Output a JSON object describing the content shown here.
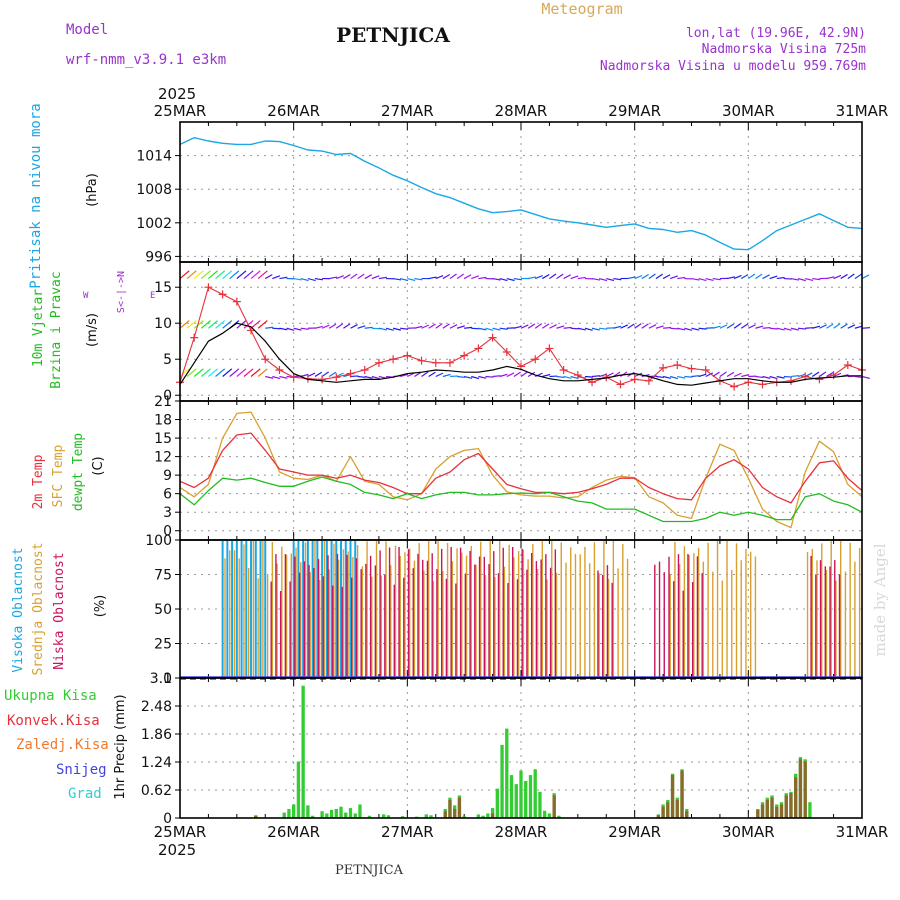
{
  "header": {
    "model_label": "Model",
    "model_name": "wrf-nmm_v3.9.1 e3km",
    "station": "PETNJICA",
    "product": "Meteogram",
    "location": "lon,lat (19.96E, 42.9N)",
    "altitude": "Nadmorska Visina 725m",
    "model_altitude": "Nadmorska Visina u modelu 959.769m",
    "footer_station": "PETNJICA",
    "watermark": "made by Angel"
  },
  "time_axis": {
    "year": "2025",
    "labels": [
      "25MAR",
      "26MAR",
      "27MAR",
      "28MAR",
      "29MAR",
      "30MAR",
      "31MAR"
    ],
    "start_hour": 0,
    "end_hour": 144
  },
  "colors": {
    "pressure": "#1aa7e6",
    "wind_label": "#22bb22",
    "wind_speed": "#000000",
    "gust": "#e8313b",
    "temp2m": "#e8313b",
    "sfc_temp": "#d9a030",
    "dewpt": "#22bb22",
    "cloud_high": "#1aa7e6",
    "cloud_mid": "#d9a030",
    "cloud_low": "#c8145a",
    "precip_total": "#33cc33",
    "precip_conv": "#e8313b",
    "precip_frz": "#f07830",
    "precip_snow": "#4444dd",
    "precip_grad": "#33cccc",
    "title_purple": "#9933cc",
    "meteogram_orange": "#d9a85a"
  },
  "chart_data": [
    {
      "type": "line",
      "name": "pressure",
      "title": "Pritisak na nivou mora",
      "ylabel": "(hPa)",
      "yticks": [
        "1014",
        "1008",
        "1002",
        "996"
      ],
      "ytick_values": [
        1014,
        1008,
        1002,
        996
      ],
      "ylim": [
        995,
        1020
      ],
      "x_hours": [
        0,
        3,
        6,
        9,
        12,
        15,
        18,
        21,
        24,
        27,
        30,
        33,
        36,
        39,
        42,
        45,
        48,
        51,
        54,
        57,
        60,
        63,
        66,
        69,
        72,
        75,
        78,
        81,
        84,
        87,
        90,
        93,
        96,
        99,
        102,
        105,
        108,
        111,
        114,
        117,
        120,
        123,
        126,
        129,
        132,
        135,
        138,
        141,
        144
      ],
      "series": [
        {
          "name": "MSLP",
          "values": [
            1016,
            1017.2,
            1016.6,
            1016.2,
            1016,
            1016,
            1016.6,
            1016.5,
            1015.8,
            1015,
            1014.8,
            1014.2,
            1014.4,
            1013,
            1011.8,
            1010.5,
            1009.5,
            1008.3,
            1007.2,
            1006.5,
            1005.5,
            1004.5,
            1003.8,
            1004,
            1004.3,
            1003.5,
            1002.7,
            1002.3,
            1002,
            1001.6,
            1001.2,
            1001.5,
            1001.8,
            1001,
            1000.8,
            1000.3,
            1000.6,
            999.8,
            998.5,
            997.3,
            997.2,
            998.8,
            1000.6,
            1001.6,
            1002.6,
            1003.6,
            1002.4,
            1001.2,
            1001
          ]
        }
      ]
    },
    {
      "type": "line",
      "name": "wind",
      "title": "10m Vjetar Brzina i Pravac",
      "ylabel": "(m/s)",
      "compass_label": "w<-->E",
      "compass_label2": "S<-|->N",
      "yticks": [
        "15",
        "10",
        "5",
        "0"
      ],
      "ytick_values": [
        15,
        10,
        5,
        0
      ],
      "ylim": [
        -0.8,
        18.5
      ],
      "x_hours": [
        0,
        3,
        6,
        9,
        12,
        15,
        18,
        21,
        24,
        27,
        30,
        33,
        36,
        39,
        42,
        45,
        48,
        51,
        54,
        57,
        60,
        63,
        66,
        69,
        72,
        75,
        78,
        81,
        84,
        87,
        90,
        93,
        96,
        99,
        102,
        105,
        108,
        111,
        114,
        117,
        120,
        123,
        126,
        129,
        132,
        135,
        138,
        141,
        144
      ],
      "series": [
        {
          "name": "Brzina",
          "values": [
            1.5,
            4.5,
            7.5,
            8.6,
            10,
            9.5,
            7.5,
            5,
            3,
            2.2,
            2,
            1.8,
            2,
            2.2,
            2.2,
            2.5,
            3,
            3.2,
            3.5,
            3.4,
            3.2,
            3.2,
            3.5,
            4,
            3.6,
            2.8,
            2.3,
            2,
            2,
            2.2,
            2.4,
            2.8,
            3,
            2.6,
            2,
            1.5,
            1.4,
            1.7,
            2,
            2.3,
            2.3,
            2,
            1.8,
            1.8,
            2.2,
            2.4,
            2.5,
            2.7,
            2.7
          ]
        },
        {
          "name": "Udari",
          "values": [
            1.8,
            8,
            15,
            14,
            13,
            9,
            5,
            3.5,
            2.5,
            2.3,
            2.2,
            2.5,
            3,
            3.5,
            4.5,
            5,
            5.5,
            4.8,
            4.5,
            4.5,
            5.5,
            6.5,
            8,
            6,
            4,
            5,
            6.5,
            3.5,
            2.8,
            1.8,
            2.5,
            1.5,
            2.2,
            2,
            3.8,
            4.2,
            3.7,
            3.5,
            2,
            1.2,
            1.8,
            1.5,
            1.8,
            2,
            2.6,
            2.2,
            2.8,
            4.2,
            3.5
          ]
        }
      ]
    },
    {
      "type": "line",
      "name": "temperature",
      "title_2m": "2m Temp",
      "title_sfc": "SFC Temp",
      "title_dew": "dewpt Temp",
      "ylabel": "(C)",
      "yticks": [
        "21",
        "18",
        "15",
        "12",
        "9",
        "6",
        "3",
        "0"
      ],
      "ytick_values": [
        21,
        18,
        15,
        12,
        9,
        6,
        3,
        0
      ],
      "ylim": [
        -1.5,
        21
      ],
      "x_hours": [
        0,
        3,
        6,
        9,
        12,
        15,
        18,
        21,
        24,
        27,
        30,
        33,
        36,
        39,
        42,
        45,
        48,
        51,
        54,
        57,
        60,
        63,
        66,
        69,
        72,
        75,
        78,
        81,
        84,
        87,
        90,
        93,
        96,
        99,
        102,
        105,
        108,
        111,
        114,
        117,
        120,
        123,
        126,
        129,
        132,
        135,
        138,
        141,
        144
      ],
      "series": [
        {
          "name": "2m Temp",
          "values": [
            8,
            7,
            8.5,
            13,
            15.5,
            15.8,
            13,
            10,
            9.5,
            9,
            9,
            8.5,
            9,
            8.2,
            7.8,
            7,
            6,
            6,
            8.5,
            9.5,
            11.5,
            12.5,
            10,
            7.5,
            6.8,
            6.2,
            6.2,
            6,
            6.2,
            6.8,
            7.5,
            8.5,
            8.5,
            7,
            6,
            5.2,
            5,
            8.5,
            10.5,
            11.5,
            10,
            7,
            5.5,
            4.5,
            8,
            11,
            11.3,
            8.5,
            6.5
          ]
        },
        {
          "name": "SFC Temp",
          "values": [
            7,
            5.5,
            7.5,
            15,
            19,
            19.2,
            15,
            9.5,
            8.5,
            8.3,
            9,
            8,
            12,
            8,
            7.5,
            5.5,
            5,
            6,
            10,
            12,
            13,
            13.3,
            9,
            6.3,
            5.8,
            5.6,
            5.6,
            5.3,
            5.5,
            7,
            8.2,
            8.8,
            8.6,
            5.5,
            4.5,
            2.5,
            2,
            8.5,
            14,
            13,
            8.5,
            3.5,
            1.5,
            0.5,
            9.5,
            14.5,
            12.8,
            7.5,
            5.5
          ]
        },
        {
          "name": "dewpt Temp",
          "values": [
            6,
            4.2,
            6.5,
            8.5,
            8.2,
            8.5,
            7.8,
            7.2,
            7.2,
            8,
            8.7,
            8,
            7.5,
            6.2,
            5.8,
            5.2,
            6,
            5.2,
            5.8,
            6.2,
            6.2,
            5.8,
            5.8,
            6,
            6.1,
            6,
            6.2,
            5.5,
            4.8,
            4.5,
            3.5,
            3.5,
            3.5,
            2.5,
            1.5,
            1.5,
            1.5,
            2,
            3,
            2.5,
            3,
            2.5,
            1.8,
            1.8,
            5.5,
            6,
            4.8,
            4.2,
            3
          ]
        }
      ]
    },
    {
      "type": "bar",
      "name": "cloud",
      "title_high": "Visoka Oblacnost",
      "title_mid": "Srednja Oblacnost",
      "title_low": "Niska Oblacnost",
      "ylabel": "(%)",
      "yticks": [
        "100",
        "75",
        "50",
        "25",
        "0"
      ],
      "ytick_values": [
        100,
        75,
        50,
        25,
        0
      ],
      "ylim": [
        0,
        100
      ],
      "series": [
        {
          "name": "Visoka",
          "segments": [
            {
              "from": 9,
              "to": 19,
              "value": 100
            },
            {
              "from": 24,
              "to": 38,
              "value": 100
            }
          ]
        },
        {
          "name": "Srednja",
          "segments": [
            {
              "from": 9,
              "to": 65,
              "value": 100
            },
            {
              "from": 65,
              "to": 95,
              "value": 100
            },
            {
              "from": 103,
              "to": 122,
              "value": 100
            },
            {
              "from": 132,
              "to": 144,
              "value": 100
            }
          ]
        },
        {
          "name": "Niska",
          "segments": [
            {
              "from": 19,
              "to": 40,
              "value": 90
            },
            {
              "from": 40,
              "to": 80,
              "value": 95
            },
            {
              "from": 88,
              "to": 92,
              "value": 85
            },
            {
              "from": 100,
              "to": 111,
              "value": 90
            },
            {
              "from": 133,
              "to": 140,
              "value": 90
            }
          ]
        }
      ]
    },
    {
      "type": "bar",
      "name": "precipitation",
      "ylabel": "1hr Precip (mm)",
      "legend": [
        "Ukupna Kisa",
        "Konvek.Kisa",
        "Zaledj.Kisa",
        "Snijeg",
        "Grad"
      ],
      "yticks": [
        "3.1",
        "2.48",
        "1.86",
        "1.24",
        "0.62",
        "0"
      ],
      "ytick_values": [
        3.1,
        2.48,
        1.86,
        1.24,
        0.62,
        0
      ],
      "ylim": [
        0,
        3.1
      ],
      "bars_total": [
        {
          "h": 16,
          "v": 0.06
        },
        {
          "h": 22,
          "v": 0.12
        },
        {
          "h": 23,
          "v": 0.2
        },
        {
          "h": 24,
          "v": 0.3
        },
        {
          "h": 25,
          "v": 1.25
        },
        {
          "h": 26,
          "v": 2.93
        },
        {
          "h": 27,
          "v": 0.28
        },
        {
          "h": 28,
          "v": 0.05
        },
        {
          "h": 30,
          "v": 0.15
        },
        {
          "h": 31,
          "v": 0.1
        },
        {
          "h": 32,
          "v": 0.18
        },
        {
          "h": 33,
          "v": 0.2
        },
        {
          "h": 34,
          "v": 0.25
        },
        {
          "h": 35,
          "v": 0.12
        },
        {
          "h": 36,
          "v": 0.22
        },
        {
          "h": 37,
          "v": 0.1
        },
        {
          "h": 38,
          "v": 0.3
        },
        {
          "h": 40,
          "v": 0.05
        },
        {
          "h": 43,
          "v": 0.08
        },
        {
          "h": 44,
          "v": 0.06
        },
        {
          "h": 47,
          "v": 0.04
        },
        {
          "h": 50,
          "v": 0.03
        },
        {
          "h": 52,
          "v": 0.08
        },
        {
          "h": 53,
          "v": 0.06
        },
        {
          "h": 56,
          "v": 0.2
        },
        {
          "h": 57,
          "v": 0.45
        },
        {
          "h": 58,
          "v": 0.28
        },
        {
          "h": 59,
          "v": 0.5
        },
        {
          "h": 60,
          "v": 0.04
        },
        {
          "h": 63,
          "v": 0.08
        },
        {
          "h": 64,
          "v": 0.05
        },
        {
          "h": 65,
          "v": 0.1
        },
        {
          "h": 66,
          "v": 0.22
        },
        {
          "h": 67,
          "v": 0.65
        },
        {
          "h": 68,
          "v": 1.62
        },
        {
          "h": 69,
          "v": 1.98
        },
        {
          "h": 70,
          "v": 0.95
        },
        {
          "h": 71,
          "v": 0.75
        },
        {
          "h": 72,
          "v": 1.05
        },
        {
          "h": 73,
          "v": 0.82
        },
        {
          "h": 74,
          "v": 0.95
        },
        {
          "h": 75,
          "v": 1.08
        },
        {
          "h": 76,
          "v": 0.58
        },
        {
          "h": 77,
          "v": 0.16
        },
        {
          "h": 78,
          "v": 0.1
        },
        {
          "h": 79,
          "v": 0.55
        },
        {
          "h": 80,
          "v": 0.05
        },
        {
          "h": 101,
          "v": 0.08
        },
        {
          "h": 102,
          "v": 0.3
        },
        {
          "h": 103,
          "v": 0.4
        },
        {
          "h": 104,
          "v": 0.98
        },
        {
          "h": 105,
          "v": 0.45
        },
        {
          "h": 106,
          "v": 1.08
        },
        {
          "h": 107,
          "v": 0.2
        },
        {
          "h": 122,
          "v": 0.2
        },
        {
          "h": 123,
          "v": 0.35
        },
        {
          "h": 124,
          "v": 0.45
        },
        {
          "h": 125,
          "v": 0.5
        },
        {
          "h": 126,
          "v": 0.3
        },
        {
          "h": 127,
          "v": 0.35
        },
        {
          "h": 128,
          "v": 0.55
        },
        {
          "h": 129,
          "v": 0.58
        },
        {
          "h": 130,
          "v": 0.98
        },
        {
          "h": 131,
          "v": 1.35
        },
        {
          "h": 132,
          "v": 1.3
        },
        {
          "h": 133,
          "v": 0.35
        }
      ],
      "bars_conv": [
        {
          "h": 16,
          "v": 0.05
        },
        {
          "h": 56,
          "v": 0.15
        },
        {
          "h": 57,
          "v": 0.4
        },
        {
          "h": 58,
          "v": 0.2
        },
        {
          "h": 59,
          "v": 0.45
        },
        {
          "h": 66,
          "v": 0.1
        },
        {
          "h": 79,
          "v": 0.5
        },
        {
          "h": 101,
          "v": 0.06
        },
        {
          "h": 102,
          "v": 0.25
        },
        {
          "h": 103,
          "v": 0.35
        },
        {
          "h": 104,
          "v": 0.95
        },
        {
          "h": 105,
          "v": 0.4
        },
        {
          "h": 106,
          "v": 1.05
        },
        {
          "h": 107,
          "v": 0.15
        },
        {
          "h": 122,
          "v": 0.18
        },
        {
          "h": 123,
          "v": 0.3
        },
        {
          "h": 124,
          "v": 0.4
        },
        {
          "h": 125,
          "v": 0.45
        },
        {
          "h": 126,
          "v": 0.25
        },
        {
          "h": 127,
          "v": 0.3
        },
        {
          "h": 128,
          "v": 0.5
        },
        {
          "h": 129,
          "v": 0.55
        },
        {
          "h": 130,
          "v": 0.9
        },
        {
          "h": 131,
          "v": 1.3
        },
        {
          "h": 132,
          "v": 1.25
        }
      ]
    }
  ]
}
